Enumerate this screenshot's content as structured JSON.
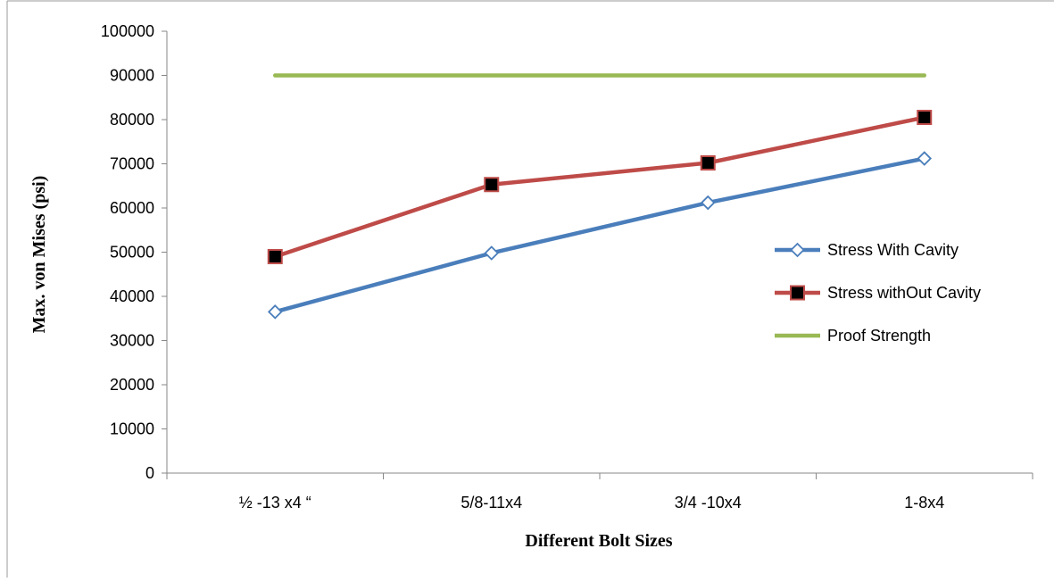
{
  "chart_data": {
    "type": "line",
    "title": "",
    "xlabel": "Different Bolt Sizes",
    "ylabel": "Max. von Mises (psi)",
    "categories": [
      "½ -13 x4 “",
      "5/8-11x4",
      "3/4 -10x4",
      "1-8x4"
    ],
    "ylim": [
      0,
      100000
    ],
    "yticks": [
      0,
      10000,
      20000,
      30000,
      40000,
      50000,
      60000,
      70000,
      80000,
      90000,
      100000
    ],
    "grid": false,
    "legend_position": "right",
    "series": [
      {
        "name": "Stress With Cavity",
        "values": [
          36500,
          49800,
          61200,
          71200
        ],
        "color": "#4a7ebb",
        "marker": "open-diamond"
      },
      {
        "name": "Stress withOut Cavity",
        "values": [
          49000,
          65300,
          70200,
          80500
        ],
        "color": "#be4b48",
        "marker": "filled-square"
      },
      {
        "name": "Proof Strength",
        "values": [
          90000,
          90000,
          90000,
          90000
        ],
        "color": "#98b954",
        "marker": "none"
      }
    ]
  }
}
